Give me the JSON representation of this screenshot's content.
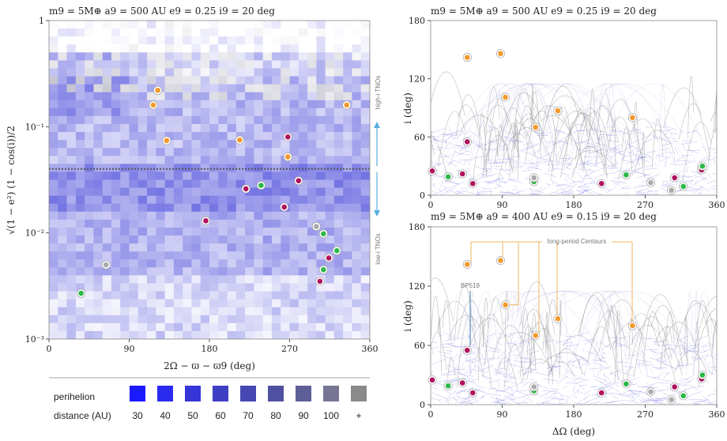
{
  "chart_data": [
    {
      "type": "heatmap",
      "title": "m9 = 5M⊕   a9 = 500 AU   e9 = 0.25   i9 = 20 deg",
      "xlabel": "2Ω − ϖ − ϖ9 (deg)",
      "ylabel": "√(1 − e²) (1 − cos(i))/2",
      "xlim": [
        0,
        360
      ],
      "ylim": [
        0.001,
        1
      ],
      "yscale": "log",
      "x_ticks": [
        "0",
        "90",
        "180",
        "270",
        "360"
      ],
      "y_ticks": [
        "1",
        "10⁻¹",
        "10⁻²",
        "10⁻³"
      ],
      "divider_y": 0.04,
      "region_labels": [
        "high-i TNOs",
        "low-i TNOs"
      ],
      "points": [
        {
          "x": 122,
          "y": 0.22,
          "color": "#f29a2e"
        },
        {
          "x": 117,
          "y": 0.16,
          "color": "#f29a2e"
        },
        {
          "x": 132,
          "y": 0.074,
          "color": "#f29a2e"
        },
        {
          "x": 214,
          "y": 0.075,
          "color": "#f29a2e"
        },
        {
          "x": 268,
          "y": 0.08,
          "color": "#b0125e"
        },
        {
          "x": 268,
          "y": 0.052,
          "color": "#f29a2e"
        },
        {
          "x": 334,
          "y": 0.16,
          "color": "#f29a2e"
        },
        {
          "x": 221,
          "y": 0.026,
          "color": "#b0125e"
        },
        {
          "x": 238,
          "y": 0.028,
          "color": "#2db84a"
        },
        {
          "x": 280,
          "y": 0.031,
          "color": "#b0125e"
        },
        {
          "x": 264,
          "y": 0.0175,
          "color": "#b0125e"
        },
        {
          "x": 176,
          "y": 0.013,
          "color": "#b0125e"
        },
        {
          "x": 300,
          "y": 0.0115,
          "color": "#aaaaaa"
        },
        {
          "x": 308,
          "y": 0.0098,
          "color": "#2db84a"
        },
        {
          "x": 323,
          "y": 0.0068,
          "color": "#2db84a"
        },
        {
          "x": 314,
          "y": 0.0058,
          "color": "#b0125e"
        },
        {
          "x": 308,
          "y": 0.0045,
          "color": "#2db84a"
        },
        {
          "x": 304,
          "y": 0.0035,
          "color": "#b0125e"
        },
        {
          "x": 64,
          "y": 0.005,
          "color": "#aaaaaa"
        },
        {
          "x": 36,
          "y": 0.0027,
          "color": "#2db84a"
        }
      ]
    },
    {
      "type": "scatter",
      "title": "m9 = 5M⊕   a9 = 500 AU   e9 = 0.25   i9 = 20 deg",
      "xlabel": "",
      "ylabel": "i (deg)",
      "xlim": [
        0,
        360
      ],
      "ylim": [
        0,
        180
      ],
      "x_ticks": [
        "0",
        "90",
        "180",
        "270",
        "360"
      ],
      "y_ticks": [
        "0",
        "60",
        "120",
        "180"
      ],
      "points": [
        {
          "x": 46,
          "y": 142,
          "color": "#f29a2e"
        },
        {
          "x": 88,
          "y": 146,
          "color": "#f29a2e"
        },
        {
          "x": 94,
          "y": 101,
          "color": "#f29a2e"
        },
        {
          "x": 132,
          "y": 70,
          "color": "#f29a2e"
        },
        {
          "x": 160,
          "y": 87,
          "color": "#f29a2e"
        },
        {
          "x": 254,
          "y": 80,
          "color": "#f29a2e"
        },
        {
          "x": 46,
          "y": 55,
          "color": "#b0125e"
        },
        {
          "x": 2,
          "y": 25,
          "color": "#b0125e"
        },
        {
          "x": 40,
          "y": 22,
          "color": "#b0125e"
        },
        {
          "x": 53,
          "y": 12,
          "color": "#b0125e"
        },
        {
          "x": 215,
          "y": 12,
          "color": "#b0125e"
        },
        {
          "x": 307,
          "y": 18,
          "color": "#b0125e"
        },
        {
          "x": 341,
          "y": 26,
          "color": "#b0125e"
        },
        {
          "x": 22,
          "y": 19,
          "color": "#2db84a"
        },
        {
          "x": 130,
          "y": 14,
          "color": "#2db84a"
        },
        {
          "x": 246,
          "y": 21,
          "color": "#2db84a"
        },
        {
          "x": 318,
          "y": 9,
          "color": "#2db84a"
        },
        {
          "x": 342,
          "y": 30,
          "color": "#2db84a"
        },
        {
          "x": 130,
          "y": 18,
          "color": "#aaaaaa"
        },
        {
          "x": 277,
          "y": 13,
          "color": "#aaaaaa"
        },
        {
          "x": 303,
          "y": 5,
          "color": "#aaaaaa"
        }
      ]
    },
    {
      "type": "scatter",
      "title": "m9 = 5M⊕   a9 = 400 AU   e9 = 0.15   i9 = 20 deg",
      "xlabel": "ΔΩ (deg)",
      "ylabel": "i (deg)",
      "xlim": [
        0,
        360
      ],
      "ylim": [
        0,
        180
      ],
      "x_ticks": [
        "0",
        "90",
        "180",
        "270",
        "360"
      ],
      "y_ticks": [
        "0",
        "60",
        "120",
        "180"
      ],
      "annotations": [
        "long-period Centaurs",
        "BP519"
      ],
      "points": [
        {
          "x": 46,
          "y": 142,
          "color": "#f29a2e"
        },
        {
          "x": 88,
          "y": 146,
          "color": "#f29a2e"
        },
        {
          "x": 94,
          "y": 101,
          "color": "#f29a2e"
        },
        {
          "x": 132,
          "y": 70,
          "color": "#f29a2e"
        },
        {
          "x": 160,
          "y": 87,
          "color": "#f29a2e"
        },
        {
          "x": 254,
          "y": 80,
          "color": "#f29a2e"
        },
        {
          "x": 46,
          "y": 55,
          "color": "#b0125e"
        },
        {
          "x": 2,
          "y": 25,
          "color": "#b0125e"
        },
        {
          "x": 40,
          "y": 22,
          "color": "#b0125e"
        },
        {
          "x": 53,
          "y": 12,
          "color": "#b0125e"
        },
        {
          "x": 215,
          "y": 12,
          "color": "#b0125e"
        },
        {
          "x": 307,
          "y": 18,
          "color": "#b0125e"
        },
        {
          "x": 341,
          "y": 26,
          "color": "#b0125e"
        },
        {
          "x": 22,
          "y": 19,
          "color": "#2db84a"
        },
        {
          "x": 130,
          "y": 14,
          "color": "#2db84a"
        },
        {
          "x": 246,
          "y": 21,
          "color": "#2db84a"
        },
        {
          "x": 318,
          "y": 9,
          "color": "#2db84a"
        },
        {
          "x": 342,
          "y": 30,
          "color": "#2db84a"
        },
        {
          "x": 130,
          "y": 18,
          "color": "#aaaaaa"
        },
        {
          "x": 277,
          "y": 13,
          "color": "#aaaaaa"
        },
        {
          "x": 303,
          "y": 5,
          "color": "#aaaaaa"
        }
      ]
    }
  ],
  "legend": {
    "label_line1": "perihelion",
    "label_line2": "distance (AU)",
    "items": [
      {
        "label": "30",
        "color": "#1a1aff"
      },
      {
        "label": "40",
        "color": "#2b2bef"
      },
      {
        "label": "50",
        "color": "#3535d8"
      },
      {
        "label": "60",
        "color": "#3f3fc4"
      },
      {
        "label": "70",
        "color": "#4747b3"
      },
      {
        "label": "80",
        "color": "#5050a3"
      },
      {
        "label": "90",
        "color": "#5f5f98"
      },
      {
        "label": "100",
        "color": "#767694"
      },
      {
        "label": "+",
        "color": "#8a8a8a"
      }
    ]
  },
  "colors": {
    "orange": "#f29a2e",
    "magenta": "#b0125e",
    "green": "#2db84a",
    "gray": "#aaaaaa",
    "arrow": "#5aaee0"
  }
}
